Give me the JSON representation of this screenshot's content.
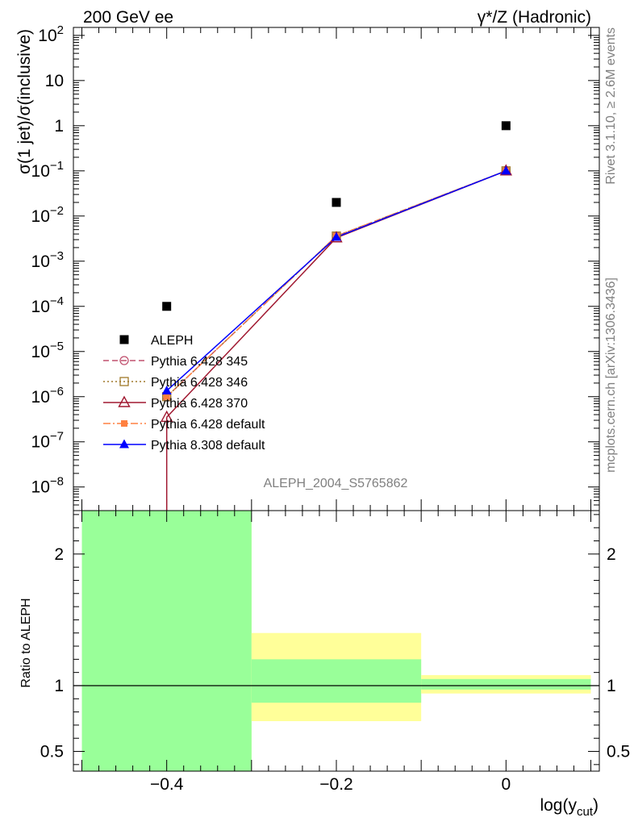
{
  "header": {
    "left": "200 GeV ee",
    "right": "γ*/Z (Hadronic)"
  },
  "side_labels": {
    "rivet": "Rivet 3.1.10, ≥ 2.6M events",
    "site": "mcplots.cern.ch [arXiv:1306.3436]"
  },
  "watermark": "ALEPH_2004_S5765862",
  "colors": {
    "data": "#000000",
    "p345": "#c0506e",
    "p346": "#a0792a",
    "p370": "#a01830",
    "pdef": "#ff8040",
    "p8": "#0000ff",
    "band_inner": "#99ff99",
    "band_outer": "#ffff99"
  },
  "chart_data": [
    {
      "type": "scatter",
      "panel": "main",
      "ylabel": "σ(1 jet)/σ(inclusive)",
      "yscale": "log",
      "xlim": [
        -0.51,
        0.11
      ],
      "ylim": [
        3e-09,
        150
      ],
      "x": [
        -0.4,
        -0.2,
        0
      ],
      "x_tick_values": [
        -0.4,
        -0.2,
        0
      ],
      "y_ticks": [
        {
          "value": 100.0,
          "mant": "10",
          "exp": "2"
        },
        {
          "value": 10.0,
          "mant": "10",
          "exp": ""
        },
        {
          "value": 1.0,
          "mant": "1",
          "exp": ""
        },
        {
          "value": 0.1,
          "mant": "10",
          "exp": "−1"
        },
        {
          "value": 0.01,
          "mant": "10",
          "exp": "−2"
        },
        {
          "value": 0.001,
          "mant": "10",
          "exp": "−3"
        },
        {
          "value": 0.0001,
          "mant": "10",
          "exp": "−4"
        },
        {
          "value": 1e-05,
          "mant": "10",
          "exp": "−5"
        },
        {
          "value": 1e-06,
          "mant": "10",
          "exp": "−6"
        },
        {
          "value": 1e-07,
          "mant": "10",
          "exp": "−7"
        },
        {
          "value": 1e-08,
          "mant": "10",
          "exp": "−8"
        }
      ],
      "legend_position": "bottom-left",
      "series": [
        {
          "key": "data",
          "name": "ALEPH",
          "marker": "square-filled",
          "line": "none",
          "values": [
            0.0001,
            0.02,
            1.0
          ]
        },
        {
          "key": "p345",
          "name": "Pythia 6.428 345",
          "marker": "circle-open",
          "line": "dashed",
          "values": [
            1e-06,
            0.0036,
            0.1
          ]
        },
        {
          "key": "p346",
          "name": "Pythia 6.428 346",
          "marker": "square-open",
          "line": "dotted",
          "values": [
            1e-06,
            0.0036,
            0.1
          ]
        },
        {
          "key": "p370",
          "name": "Pythia 6.428 370",
          "marker": "triangle-open",
          "line": "solid",
          "values": [
            3.5e-07,
            0.0033,
            0.1
          ],
          "low_error_to_offscale_at": -0.4
        },
        {
          "key": "pdef",
          "name": "Pythia 6.428 default",
          "marker": "square-small-filled",
          "line": "dashdot",
          "values": [
            1e-06,
            0.0036,
            0.1
          ]
        },
        {
          "key": "p8",
          "name": "Pythia 8.308 default",
          "marker": "triangle-filled",
          "line": "solid",
          "values": [
            1.35e-06,
            0.0034,
            0.1
          ]
        }
      ]
    },
    {
      "type": "area",
      "panel": "ratio",
      "ylabel": "Ratio to ALEPH",
      "xlabel_main": "log(y",
      "xlabel_sub": "cut",
      "xlabel_close": ")",
      "xlim": [
        -0.51,
        0.11
      ],
      "ylim": [
        0.35,
        2.33
      ],
      "x_ticks": [
        {
          "value": -0.4,
          "label": "−0.4"
        },
        {
          "value": -0.2,
          "label": "−0.2"
        },
        {
          "value": 0,
          "label": "0"
        }
      ],
      "y_ticks": [
        {
          "value": 0.5,
          "label": "0.5"
        },
        {
          "value": 1,
          "label": "1"
        },
        {
          "value": 2,
          "label": "2"
        }
      ],
      "reference_line": 1,
      "bands": [
        {
          "x_low": -0.5,
          "x_high": -0.3,
          "outer": [
            0.35,
            2.33
          ],
          "inner": [
            0.35,
            2.33
          ]
        },
        {
          "x_low": -0.3,
          "x_high": -0.1,
          "outer": [
            0.73,
            1.4
          ],
          "inner": [
            0.87,
            1.2
          ]
        },
        {
          "x_low": -0.1,
          "x_high": 0.1,
          "outer": [
            0.94,
            1.08
          ],
          "inner": [
            0.97,
            1.05
          ]
        }
      ]
    }
  ]
}
